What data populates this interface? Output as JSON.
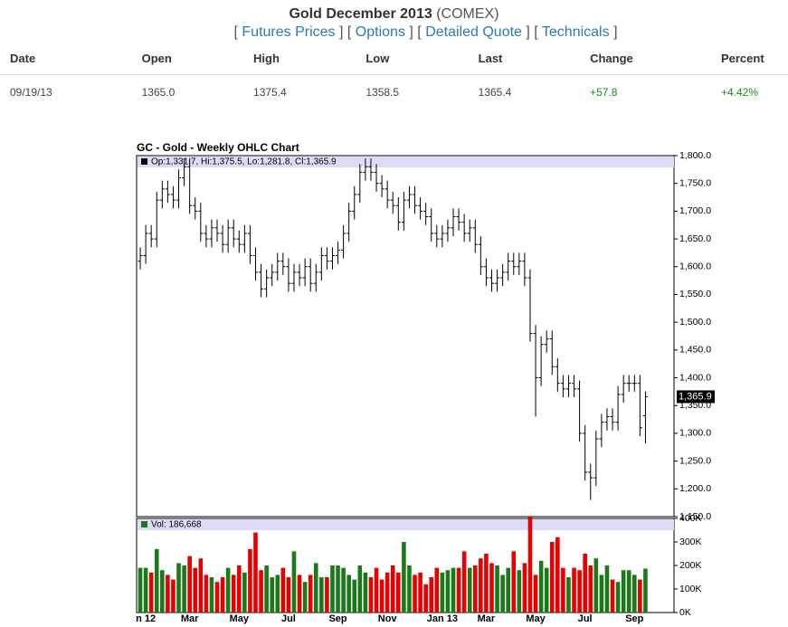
{
  "header": {
    "title": "Gold December 2013",
    "exchange": "(COMEX)"
  },
  "nav": {
    "open": "[",
    "close": "]",
    "links": [
      "Futures Prices",
      "Options",
      "Detailed Quote",
      "Technicals"
    ]
  },
  "table": {
    "columns": [
      "Date",
      "Open",
      "High",
      "Low",
      "Last",
      "Change",
      "Percent"
    ],
    "rows": [
      [
        "09/19/13",
        "1365.0",
        "1375.4",
        "1358.5",
        "1365.4",
        "+57.8",
        "+4.42%"
      ]
    ]
  },
  "chart_data": [
    {
      "type": "ohlc",
      "title": "GC - Gold - Weekly OHLC Chart",
      "legend": "Op:1,331.7, Hi:1,375.5, Lo:1,281.8, Cl:1,365.9",
      "last_label": "1,365.9",
      "color": "#000000",
      "categories": [
        null,
        "n 12",
        null,
        null,
        null,
        null,
        null,
        null,
        null,
        "Mar",
        null,
        null,
        null,
        null,
        null,
        null,
        null,
        null,
        "May",
        null,
        null,
        null,
        null,
        null,
        null,
        null,
        null,
        "Jul",
        null,
        null,
        null,
        null,
        null,
        null,
        null,
        null,
        "Sep",
        null,
        null,
        null,
        null,
        null,
        null,
        null,
        null,
        "Nov",
        null,
        null,
        null,
        null,
        null,
        null,
        null,
        null,
        null,
        "Jan 13",
        null,
        null,
        null,
        null,
        null,
        null,
        null,
        "Mar",
        null,
        null,
        null,
        null,
        null,
        null,
        null,
        null,
        "May",
        null,
        null,
        null,
        null,
        null,
        null,
        null,
        null,
        "Jul",
        null,
        null,
        null,
        null,
        null,
        null,
        null,
        null,
        "Sep",
        null,
        null
      ],
      "open": [
        1610,
        1620,
        1660,
        1650,
        1720,
        1740,
        1730,
        1720,
        1760,
        1780,
        1710,
        1700,
        1660,
        1650,
        1670,
        1660,
        1640,
        1670,
        1650,
        1640,
        1660,
        1620,
        1590,
        1560,
        1580,
        1590,
        1610,
        1600,
        1570,
        1590,
        1580,
        1600,
        1570,
        1590,
        1620,
        1610,
        1620,
        1630,
        1660,
        1700,
        1730,
        1770,
        1780,
        1770,
        1750,
        1740,
        1720,
        1710,
        1680,
        1720,
        1730,
        1710,
        1700,
        1690,
        1660,
        1650,
        1660,
        1670,
        1690,
        1680,
        1660,
        1670,
        1640,
        1600,
        1580,
        1570,
        1580,
        1590,
        1610,
        1600,
        1610,
        1580,
        1480,
        1400,
        1460,
        1470,
        1420,
        1390,
        1380,
        1390,
        1380,
        1300,
        1230,
        1220,
        1290,
        1320,
        1330,
        1320,
        1370,
        1390,
        1390,
        1390,
        1331.7
      ],
      "high": [
        1635,
        1675,
        1675,
        1735,
        1755,
        1755,
        1745,
        1775,
        1795,
        1795,
        1725,
        1715,
        1675,
        1685,
        1685,
        1675,
        1685,
        1685,
        1665,
        1675,
        1675,
        1635,
        1605,
        1595,
        1605,
        1625,
        1625,
        1615,
        1605,
        1605,
        1615,
        1615,
        1605,
        1635,
        1635,
        1635,
        1645,
        1675,
        1715,
        1745,
        1785,
        1795,
        1795,
        1785,
        1765,
        1755,
        1735,
        1725,
        1735,
        1745,
        1745,
        1725,
        1715,
        1705,
        1675,
        1675,
        1685,
        1705,
        1705,
        1695,
        1685,
        1685,
        1655,
        1615,
        1595,
        1595,
        1605,
        1625,
        1625,
        1625,
        1625,
        1595,
        1495,
        1475,
        1485,
        1485,
        1435,
        1405,
        1405,
        1405,
        1395,
        1315,
        1245,
        1305,
        1335,
        1345,
        1345,
        1385,
        1405,
        1405,
        1405,
        1405,
        1375.5
      ],
      "low": [
        1595,
        1605,
        1635,
        1635,
        1705,
        1715,
        1705,
        1705,
        1745,
        1695,
        1685,
        1645,
        1635,
        1635,
        1645,
        1625,
        1625,
        1635,
        1625,
        1625,
        1605,
        1575,
        1545,
        1545,
        1565,
        1575,
        1585,
        1555,
        1555,
        1565,
        1565,
        1555,
        1555,
        1575,
        1595,
        1595,
        1605,
        1615,
        1645,
        1685,
        1715,
        1755,
        1755,
        1735,
        1725,
        1705,
        1695,
        1665,
        1665,
        1705,
        1695,
        1685,
        1675,
        1645,
        1635,
        1635,
        1645,
        1655,
        1665,
        1645,
        1645,
        1625,
        1585,
        1565,
        1555,
        1555,
        1565,
        1575,
        1585,
        1585,
        1565,
        1465,
        1330,
        1385,
        1445,
        1405,
        1375,
        1365,
        1365,
        1365,
        1285,
        1215,
        1180,
        1205,
        1275,
        1305,
        1305,
        1305,
        1355,
        1375,
        1375,
        1295,
        1281.8
      ],
      "close": [
        1620,
        1660,
        1650,
        1720,
        1740,
        1730,
        1720,
        1760,
        1780,
        1710,
        1700,
        1660,
        1650,
        1670,
        1660,
        1640,
        1670,
        1650,
        1640,
        1660,
        1620,
        1590,
        1560,
        1580,
        1590,
        1610,
        1600,
        1570,
        1590,
        1580,
        1600,
        1570,
        1590,
        1620,
        1610,
        1620,
        1630,
        1660,
        1700,
        1730,
        1770,
        1780,
        1770,
        1750,
        1740,
        1720,
        1710,
        1680,
        1720,
        1730,
        1710,
        1700,
        1690,
        1660,
        1650,
        1660,
        1670,
        1690,
        1680,
        1660,
        1670,
        1640,
        1600,
        1580,
        1570,
        1580,
        1590,
        1610,
        1600,
        1610,
        1580,
        1480,
        1400,
        1460,
        1470,
        1420,
        1390,
        1380,
        1390,
        1380,
        1300,
        1230,
        1220,
        1290,
        1320,
        1330,
        1320,
        1370,
        1390,
        1390,
        1390,
        1310,
        1365.9
      ],
      "ylim": [
        1150,
        1800
      ],
      "yticks": [
        {
          "value": 1150,
          "label": "1,150.0"
        },
        {
          "value": 1200,
          "label": "1,200.0"
        },
        {
          "value": 1250,
          "label": "1,250.0"
        },
        {
          "value": 1300,
          "label": "1,300.0"
        },
        {
          "value": 1350,
          "label": "1,350.0"
        },
        {
          "value": 1400,
          "label": "1,400.0"
        },
        {
          "value": 1450,
          "label": "1,450.0"
        },
        {
          "value": 1500,
          "label": "1,500.0"
        },
        {
          "value": 1550,
          "label": "1,550.0"
        },
        {
          "value": 1600,
          "label": "1,600.0"
        },
        {
          "value": 1650,
          "label": "1,650.0"
        },
        {
          "value": 1700,
          "label": "1,700.0"
        },
        {
          "value": 1750,
          "label": "1,750.0"
        },
        {
          "value": 1800,
          "label": "1,800.0"
        }
      ]
    },
    {
      "type": "bar",
      "legend": "Vol: 186,668",
      "up_color": "#1a7a1a",
      "down_color": "#e60000",
      "values": [
        190000,
        190000,
        170000,
        270000,
        180000,
        160000,
        140000,
        210000,
        200000,
        240000,
        190000,
        230000,
        160000,
        150000,
        130000,
        150000,
        190000,
        160000,
        200000,
        170000,
        270000,
        340000,
        180000,
        200000,
        150000,
        160000,
        190000,
        150000,
        260000,
        160000,
        130000,
        160000,
        210000,
        150000,
        150000,
        200000,
        200000,
        190000,
        160000,
        140000,
        200000,
        170000,
        150000,
        190000,
        140000,
        170000,
        200000,
        170000,
        300000,
        200000,
        160000,
        170000,
        120000,
        150000,
        190000,
        170000,
        180000,
        190000,
        190000,
        260000,
        190000,
        200000,
        230000,
        250000,
        210000,
        200000,
        160000,
        190000,
        260000,
        180000,
        210000,
        410000,
        160000,
        220000,
        190000,
        300000,
        320000,
        190000,
        150000,
        190000,
        180000,
        250000,
        200000,
        230000,
        160000,
        200000,
        140000,
        130000,
        180000,
        180000,
        160000,
        140000,
        186668
      ],
      "ylim": [
        0,
        400000
      ],
      "yticks": [
        {
          "value": 0,
          "label": "0K"
        },
        {
          "value": 100000,
          "label": "100K"
        },
        {
          "value": 200000,
          "label": "200K"
        },
        {
          "value": 300000,
          "label": "300K"
        },
        {
          "value": 400000,
          "label": "400K"
        }
      ]
    }
  ]
}
